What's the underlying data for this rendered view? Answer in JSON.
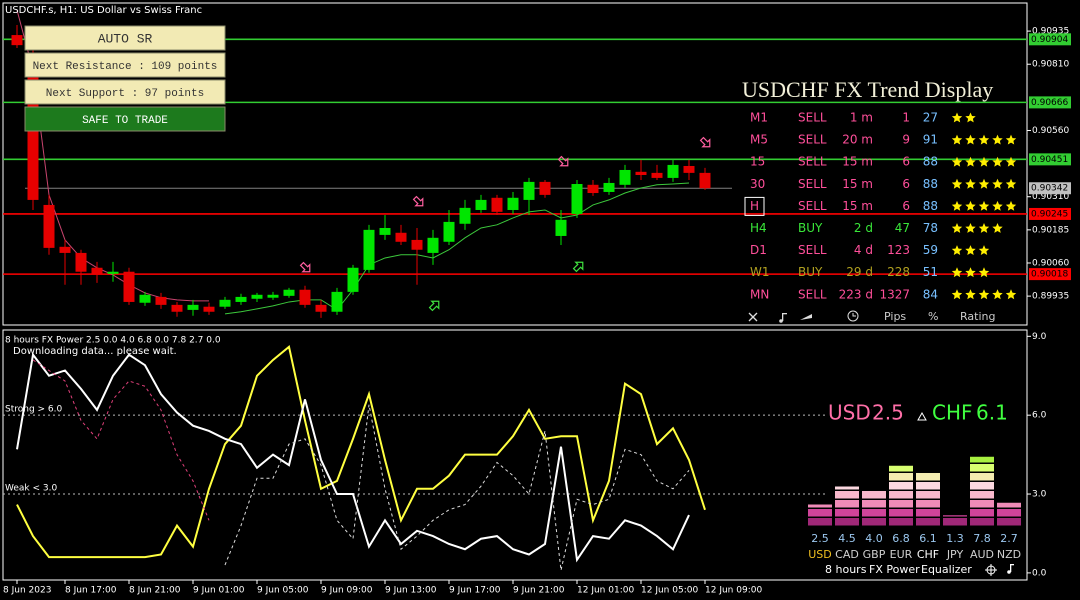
{
  "chart_data": [
    {
      "type": "candlestick",
      "title": "USDCHF.s, H1:  US Dollar vs Swiss Franc",
      "categories": [
        "8 Jun 2023",
        null,
        null,
        "8 Jun 17:00",
        null,
        null,
        null,
        "8 Jun 21:00",
        null,
        null,
        null,
        "9 Jun 01:00",
        null,
        null,
        null,
        "9 Jun 05:00",
        null,
        null,
        null,
        "9 Jun 09:00",
        null,
        null,
        null,
        "9 Jun 13:00",
        null,
        null,
        null,
        "9 Jun 17:00",
        null,
        null,
        null,
        "9 Jun 21:00",
        null,
        null,
        null,
        "12 Jun 01:00",
        null,
        null,
        null,
        "12 Jun 05:00",
        null,
        null,
        null,
        "12 Jun 09:00"
      ],
      "open": [
        0.9092,
        0.90826,
        0.90279,
        0.90121,
        0.90098,
        0.90042,
        0.90019,
        0.90027,
        0.8991,
        0.89932,
        0.89902,
        0.89883,
        0.89895,
        0.89895,
        0.89913,
        0.89925,
        0.89929,
        0.89936,
        0.89959,
        0.89902,
        0.89876,
        0.89951,
        0.90034,
        0.90166,
        0.90174,
        0.90147,
        0.90098,
        0.9014,
        0.90208,
        0.9026,
        0.90306,
        0.9026,
        0.90298,
        0.90366,
        0.90162,
        0.90245,
        0.90355,
        0.90328,
        0.90355,
        0.90404,
        0.904,
        0.90381,
        0.90426,
        0.904
      ],
      "high": [
        0.90958,
        0.90882,
        0.90317,
        0.90147,
        0.9011,
        0.90064,
        0.90064,
        0.90042,
        0.89951,
        0.89947,
        0.89913,
        0.89921,
        0.8991,
        0.89932,
        0.89944,
        0.89947,
        0.89951,
        0.89966,
        0.89974,
        0.89921,
        0.89966,
        0.90053,
        0.90204,
        0.90241,
        0.90204,
        0.90192,
        0.90185,
        0.9026,
        0.90298,
        0.90317,
        0.90317,
        0.90328,
        0.90381,
        0.90373,
        0.9026,
        0.90373,
        0.90373,
        0.90381,
        0.9043,
        0.90449,
        0.9043,
        0.90449,
        0.90449,
        0.90419
      ],
      "low": [
        0.90871,
        0.9026,
        0.90091,
        0.89978,
        0.89978,
        0.89985,
        0.89989,
        0.89902,
        0.89898,
        0.89887,
        0.89857,
        0.89861,
        0.89864,
        0.89887,
        0.89902,
        0.89913,
        0.89921,
        0.89929,
        0.89891,
        0.89853,
        0.89864,
        0.8994,
        0.90023,
        0.90147,
        0.90128,
        0.89978,
        0.90053,
        0.90128,
        0.90185,
        0.90249,
        0.90241,
        0.90245,
        0.90241,
        0.90306,
        0.90128,
        0.9023,
        0.90313,
        0.90317,
        0.90343,
        0.90373,
        0.90373,
        0.90366,
        0.90373,
        0.90336
      ],
      "close": [
        0.90882,
        0.90298,
        0.90117,
        0.90098,
        0.90027,
        0.90019,
        0.90027,
        0.89913,
        0.8994,
        0.89902,
        0.89876,
        0.89902,
        0.89876,
        0.89921,
        0.89932,
        0.8994,
        0.8994,
        0.89959,
        0.89902,
        0.89876,
        0.89951,
        0.90042,
        0.90185,
        0.90192,
        0.9014,
        0.9011,
        0.90155,
        0.90215,
        0.90268,
        0.90298,
        0.90253,
        0.90306,
        0.90366,
        0.90317,
        0.90223,
        0.90358,
        0.90324,
        0.90362,
        0.90411,
        0.90392,
        0.90381,
        0.9043,
        0.904,
        0.90342
      ],
      "up_color": "#00e600",
      "down_color": "#e60000",
      "overlays": [
        {
          "color": "#c8446e",
          "values": [
            0.91014,
            0.90788,
            0.90317,
            0.90147,
            0.90079,
            0.90042,
            0.90015,
            0.89978,
            0.89947,
            0.89929,
            0.89921,
            0.89917,
            0.89917,
            null,
            null,
            null,
            null,
            null,
            null,
            null,
            null,
            null,
            null,
            null,
            null,
            null,
            null,
            null,
            null,
            null,
            null,
            null,
            null,
            null,
            null,
            null,
            null,
            null,
            null,
            null,
            null,
            null,
            null,
            null
          ]
        },
        {
          "color": "#3cc83c",
          "values": [
            null,
            null,
            null,
            null,
            null,
            null,
            null,
            null,
            null,
            null,
            null,
            null,
            null,
            0.89868,
            0.89876,
            0.89887,
            0.89898,
            0.89913,
            0.89921,
            0.89921,
            0.89883,
            0.89959,
            0.90053,
            0.90079,
            0.90091,
            0.90091,
            0.90079,
            0.9011,
            0.90155,
            0.90192,
            0.90204,
            0.9023,
            0.90253,
            0.9026,
            0.9023,
            0.90241,
            0.90279,
            0.90298,
            0.90324,
            0.90343,
            0.90355,
            0.90358,
            0.90362,
            null
          ]
        }
      ],
      "ylim": [
        0.89826,
        0.91041
      ],
      "yticks": [
        0.90935,
        {
          "value": 0.9081,
          "label": "0.90810"
        },
        {
          "value": 0.9056,
          "label": "0.90560"
        },
        {
          "value": 0.9031,
          "label": "0.90310"
        },
        0.90185,
        {
          "value": 0.9006,
          "label": "0.90060"
        },
        0.89935
      ],
      "levels": [
        {
          "value": 0.90904,
          "color": "#32cd32"
        },
        {
          "value": 0.90666,
          "color": "#32cd32"
        },
        {
          "value": 0.90451,
          "color": "#32cd32"
        },
        {
          "value": 0.90245,
          "color": "#ff0000"
        },
        {
          "value": 0.90018,
          "color": "#ff0000"
        }
      ],
      "current_price": 0.90342
    },
    {
      "type": "line",
      "title": "8 hours FX Power 2.5 0.0 4.0 6.8 0.0 7.8 2.7 0.0",
      "subtitle": "Downloading data... please wait.",
      "annotations": [
        {
          "text": "Strong > 6.0",
          "value": 6
        },
        {
          "text": "Weak < 3.0",
          "value": 3
        }
      ],
      "series": [
        {
          "color": "#ffff40",
          "dash": false,
          "values": [
            2.6,
            1.4,
            0.6,
            0.6,
            0.6,
            0.6,
            0.6,
            0.6,
            0.6,
            0.7,
            1.8,
            1.0,
            3.2,
            4.9,
            5.6,
            7.5,
            8.1,
            8.6,
            5.8,
            3.2,
            3.5,
            5.1,
            6.8,
            4.3,
            2.0,
            3.2,
            3.2,
            3.7,
            4.5,
            4.5,
            4.5,
            5.2,
            6.2,
            5.1,
            5.2,
            5.2,
            2.0,
            3.5,
            7.2,
            6.8,
            4.9,
            5.5,
            4.3,
            2.4
          ]
        },
        {
          "color": "#ffffff",
          "dash": false,
          "values": [
            4.7,
            8.3,
            7.5,
            7.7,
            7.0,
            6.2,
            7.5,
            8.3,
            7.9,
            6.8,
            6.1,
            5.6,
            5.4,
            5.1,
            4.9,
            4.0,
            4.5,
            4.1,
            6.6,
            4.3,
            3.0,
            3.0,
            1.0,
            2.0,
            1.1,
            1.6,
            1.4,
            1.1,
            0.9,
            1.3,
            1.4,
            0.9,
            0.7,
            1.1,
            4.8,
            0.5,
            1.4,
            1.3,
            2.0,
            1.8,
            1.4,
            0.9,
            2.2,
            null
          ]
        },
        {
          "color": "#e0407a",
          "dash": true,
          "values": [
            null,
            8.1,
            7.7,
            7.3,
            5.8,
            5.1,
            6.6,
            7.3,
            7.1,
            6.2,
            4.5,
            3.5,
            2.0,
            null,
            null,
            null,
            null,
            null,
            null,
            null,
            null,
            null,
            null,
            null,
            null,
            null,
            null,
            null,
            null,
            null,
            null,
            null,
            null,
            null,
            null,
            null,
            null,
            null,
            null,
            null,
            null,
            null,
            null,
            null
          ]
        },
        {
          "color": "#dddddd",
          "dash": true,
          "values": [
            null,
            null,
            null,
            null,
            null,
            null,
            null,
            null,
            null,
            null,
            null,
            null,
            null,
            0.3,
            1.8,
            3.6,
            3.6,
            4.9,
            5.1,
            4.1,
            2.0,
            1.3,
            6.4,
            3.2,
            0.9,
            1.4,
            2.0,
            2.4,
            2.6,
            3.3,
            4.2,
            3.7,
            3.0,
            5.4,
            0.1,
            2.8,
            2.6,
            2.8,
            4.7,
            4.5,
            3.5,
            3.2,
            3.9,
            null
          ]
        }
      ],
      "ylim": [
        -0.27,
        9.24
      ],
      "yticks": [
        {
          "value": 9,
          "label": "9.0"
        },
        {
          "value": 6,
          "label": "6.0"
        },
        {
          "value": 3,
          "label": "3.0"
        },
        {
          "value": 0,
          "label": "0.0"
        }
      ]
    },
    {
      "type": "bar",
      "categories": [
        "USD",
        "CAD",
        "GBP",
        "EUR",
        "CHF",
        "JPY",
        "AUD",
        "NZD"
      ],
      "category_colors": [
        "#f0c020",
        "#d0d0d0",
        "#d0d0d0",
        "#d0d0d0",
        "#ffffff",
        "#d0d0d0",
        "#d0d0d0",
        "#d0d0d0"
      ],
      "values": [
        2.5,
        4.5,
        4.0,
        6.8,
        6.1,
        1.3,
        7.8,
        2.7
      ],
      "value_labels": [
        "2.5",
        "4.5",
        "4.0",
        "6.8",
        "6.1",
        "1.3",
        "7.8",
        "2.7"
      ],
      "footer": [
        "8 hours",
        "FX Power",
        "Equalizer"
      ]
    }
  ],
  "auto_sr": {
    "title": "AUTO SR",
    "resistance": "Next Resistance : 109 points",
    "support": "Next Support : 97 points",
    "status": "SAFE TO TRADE"
  },
  "trend_display": {
    "title": "USDCHF FX Trend Display",
    "selected_row": 4,
    "rows": [
      {
        "tf": "M1",
        "signal": "SELL",
        "duration": "1 m",
        "pips": 1,
        "percent": 27,
        "rating": 2,
        "color": "#ff4f9a"
      },
      {
        "tf": "M5",
        "signal": "SELL",
        "duration": "20 m",
        "pips": 9,
        "percent": 91,
        "rating": 5,
        "color": "#ff4f9a"
      },
      {
        "tf": "15",
        "signal": "SELL",
        "duration": "15 m",
        "pips": 6,
        "percent": 88,
        "rating": 5,
        "color": "#ff4f9a"
      },
      {
        "tf": "30",
        "signal": "SELL",
        "duration": "15 m",
        "pips": 6,
        "percent": 88,
        "rating": 5,
        "color": "#ff4f9a"
      },
      {
        "tf": "H",
        "signal": "SELL",
        "duration": "15 m",
        "pips": 6,
        "percent": 88,
        "rating": 5,
        "color": "#ff4f9a"
      },
      {
        "tf": "H4",
        "signal": "BUY",
        "duration": "2 d",
        "pips": 47,
        "percent": 78,
        "rating": 4,
        "color": "#39e639"
      },
      {
        "tf": "D1",
        "signal": "SELL",
        "duration": "4 d",
        "pips": 123,
        "percent": 59,
        "rating": 3,
        "color": "#ff4f9a"
      },
      {
        "tf": "W1",
        "signal": "BUY",
        "duration": "29 d",
        "pips": 228,
        "percent": 51,
        "rating": 3,
        "color": "#b0a020"
      },
      {
        "tf": "MN",
        "signal": "SELL",
        "duration": "223 d",
        "pips": 1327,
        "percent": 84,
        "rating": 5,
        "color": "#ff4f9a"
      }
    ],
    "percent_color": "#78c0ff",
    "star_color": "#ffee00",
    "footer": [
      "Pips",
      "%",
      "Rating"
    ]
  },
  "strength": {
    "base": {
      "currency": "USD",
      "value": 2.5,
      "color": "#ff6fa8"
    },
    "quote": {
      "currency": "CHF",
      "value": 6.1,
      "color": "#40ff40"
    }
  }
}
